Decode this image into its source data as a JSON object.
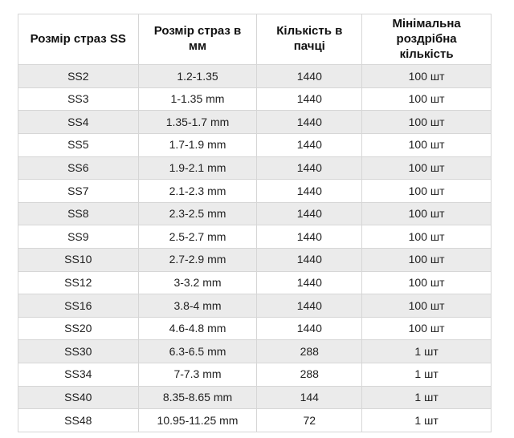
{
  "table": {
    "columns": [
      "Розмір страз SS",
      "Розмір страз в мм",
      "Кількість в пачці",
      "Мінімальна роздрібна кількість"
    ],
    "rows": [
      [
        "SS2",
        "1.2-1.35",
        "1440",
        "100 шт"
      ],
      [
        "SS3",
        "1-1.35 mm",
        "1440",
        "100 шт"
      ],
      [
        "SS4",
        "1.35-1.7 mm",
        "1440",
        "100 шт"
      ],
      [
        "SS5",
        "1.7-1.9 mm",
        "1440",
        "100 шт"
      ],
      [
        "SS6",
        "1.9-2.1 mm",
        "1440",
        "100 шт"
      ],
      [
        "SS7",
        "2.1-2.3 mm",
        "1440",
        "100 шт"
      ],
      [
        "SS8",
        "2.3-2.5 mm",
        "1440",
        "100 шт"
      ],
      [
        "SS9",
        "2.5-2.7 mm",
        "1440",
        "100 шт"
      ],
      [
        "SS10",
        "2.7-2.9 mm",
        "1440",
        "100 шт"
      ],
      [
        "SS12",
        "3-3.2 mm",
        "1440",
        "100 шт"
      ],
      [
        "SS16",
        "3.8-4 mm",
        "1440",
        "100 шт"
      ],
      [
        "SS20",
        "4.6-4.8 mm",
        "1440",
        "100 шт"
      ],
      [
        "SS30",
        "6.3-6.5 mm",
        "288",
        "1 шт"
      ],
      [
        "SS34",
        "7-7.3 mm",
        "288",
        "1 шт"
      ],
      [
        "SS40",
        "8.35-8.65 mm",
        "144",
        "1 шт"
      ],
      [
        "SS48",
        "10.95-11.25 mm",
        "72",
        "1 шт"
      ]
    ]
  },
  "colors": {
    "background": "#ffffff",
    "row_alternate": "#ebebeb",
    "border": "#d6d6d6",
    "cell_text": "#212121",
    "header_text": "#111111"
  }
}
